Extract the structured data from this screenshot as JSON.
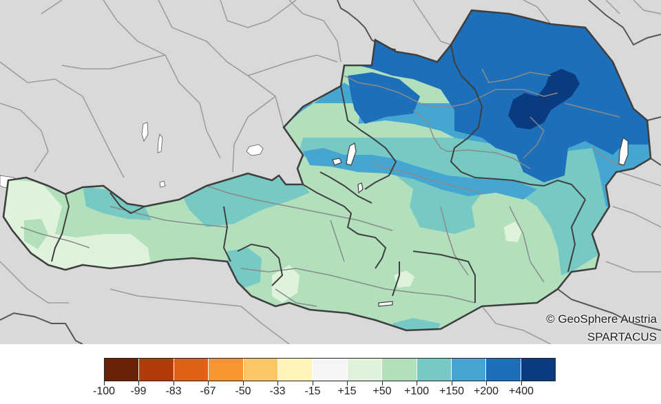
{
  "map": {
    "credit_line_1": "© GeoSphere Austria",
    "credit_line_2": "SPARTACUS",
    "background_color": "#d9d9d9",
    "lake_color": "#ffffff"
  },
  "legend": {
    "colors": [
      "#6b2308",
      "#b33a0a",
      "#e25f16",
      "#f8952e",
      "#fdc765",
      "#fff5b8",
      "#f5f5f5",
      "#def3da",
      "#b3e0bc",
      "#77c9c4",
      "#45a6d1",
      "#1c6fb8",
      "#0b3b7f"
    ],
    "labels": [
      "-100",
      "-99",
      "-83",
      "-67",
      "-50",
      "-33",
      "-15",
      "+15",
      "+50",
      "+100",
      "+150",
      "+200",
      "+400"
    ]
  }
}
